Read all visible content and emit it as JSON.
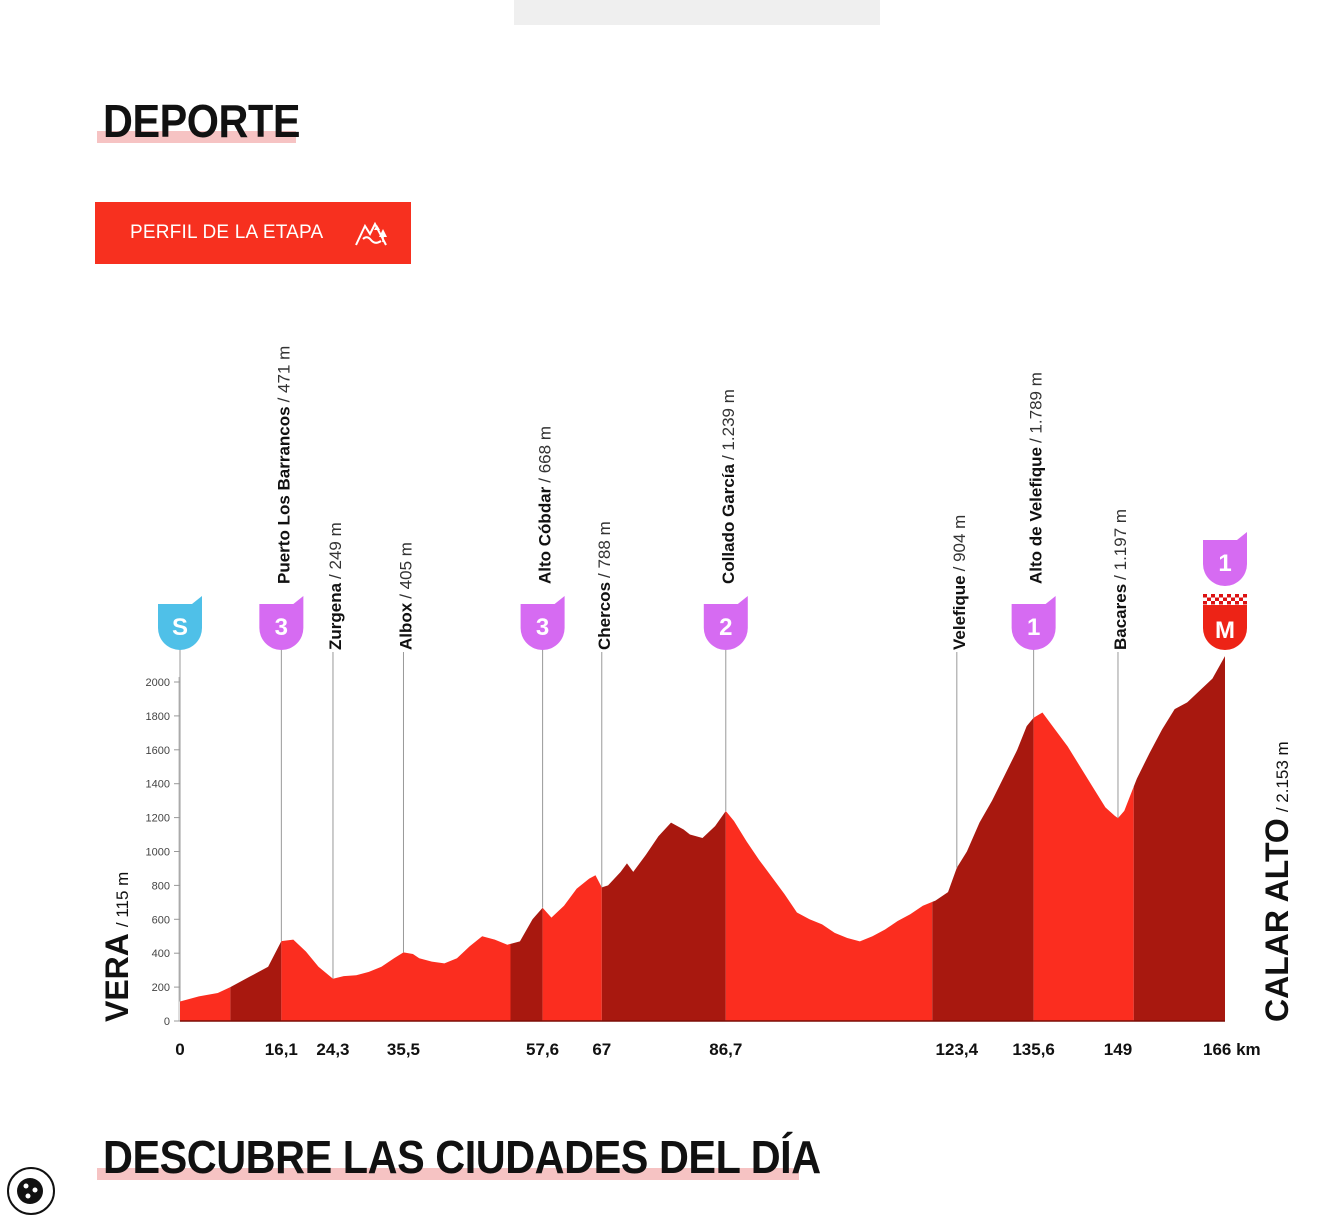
{
  "header": {
    "section_title": "DEPORTE"
  },
  "profile_button": {
    "label": "PERFIL DE LA ETAPA",
    "icon": "mountain-profile-icon"
  },
  "chart_data": {
    "type": "area",
    "x_unit": "km",
    "ylim": [
      0,
      2000
    ],
    "y_ticks": [
      "0",
      "200",
      "400",
      "600",
      "800",
      "1000",
      "1200",
      "1400",
      "1600",
      "1800",
      "2000"
    ],
    "x_ticks": [
      {
        "km": 0,
        "label": "0"
      },
      {
        "km": 16.1,
        "label": "16,1"
      },
      {
        "km": 24.3,
        "label": "24,3"
      },
      {
        "km": 35.5,
        "label": "35,5"
      },
      {
        "km": 57.6,
        "label": "57,6"
      },
      {
        "km": 67,
        "label": "67"
      },
      {
        "km": 86.7,
        "label": "86,7"
      },
      {
        "km": 123.4,
        "label": "123,4"
      },
      {
        "km": 135.6,
        "label": "135,6"
      },
      {
        "km": 149,
        "label": "149"
      },
      {
        "km": 166,
        "label": "166 km"
      }
    ],
    "start": {
      "name": "VERA",
      "altitude": "/ 115 m",
      "badge": "S"
    },
    "finish": {
      "name": "CALAR ALTO",
      "altitude": "/ 2.153 m",
      "badge": "M",
      "category": "1"
    },
    "waypoints": [
      {
        "km": 16.1,
        "name": "Puerto Los Barrancos",
        "altitude": "/ 471 m",
        "category": "3"
      },
      {
        "km": 24.3,
        "name": "Zurgena",
        "altitude": "/ 249 m"
      },
      {
        "km": 35.5,
        "name": "Albox",
        "altitude": "/ 405 m"
      },
      {
        "km": 57.6,
        "name": "Alto Cóbdar",
        "altitude": "/ 668 m",
        "category": "3"
      },
      {
        "km": 67,
        "name": "Chercos",
        "altitude": "/ 788 m"
      },
      {
        "km": 86.7,
        "name": "Collado García",
        "altitude": "/ 1.239 m",
        "category": "2"
      },
      {
        "km": 123.4,
        "name": "Velefique",
        "altitude": "/ 904 m"
      },
      {
        "km": 135.6,
        "name": "Alto de Velefique",
        "altitude": "/ 1.789 m",
        "category": "1"
      },
      {
        "km": 149,
        "name": "Bacares",
        "altitude": "/ 1.197 m"
      }
    ],
    "profile": [
      [
        0,
        115
      ],
      [
        3,
        145
      ],
      [
        6,
        165
      ],
      [
        8,
        200
      ],
      [
        11,
        260
      ],
      [
        14,
        320
      ],
      [
        16.1,
        471
      ],
      [
        18,
        480
      ],
      [
        20,
        410
      ],
      [
        22,
        320
      ],
      [
        24.3,
        249
      ],
      [
        26,
        265
      ],
      [
        28,
        270
      ],
      [
        30,
        290
      ],
      [
        32,
        320
      ],
      [
        34,
        370
      ],
      [
        35.5,
        405
      ],
      [
        37,
        395
      ],
      [
        38,
        370
      ],
      [
        40,
        350
      ],
      [
        42,
        340
      ],
      [
        44,
        370
      ],
      [
        46,
        440
      ],
      [
        48,
        500
      ],
      [
        50,
        480
      ],
      [
        52,
        450
      ],
      [
        54,
        470
      ],
      [
        56,
        600
      ],
      [
        57.6,
        668
      ],
      [
        59,
        610
      ],
      [
        61,
        680
      ],
      [
        63,
        780
      ],
      [
        65,
        840
      ],
      [
        66,
        860
      ],
      [
        67,
        788
      ],
      [
        68,
        800
      ],
      [
        70,
        880
      ],
      [
        71,
        930
      ],
      [
        72,
        880
      ],
      [
        74,
        980
      ],
      [
        76,
        1090
      ],
      [
        78,
        1170
      ],
      [
        80,
        1130
      ],
      [
        81,
        1100
      ],
      [
        83,
        1080
      ],
      [
        85,
        1150
      ],
      [
        86.7,
        1239
      ],
      [
        88,
        1180
      ],
      [
        90,
        1060
      ],
      [
        92,
        950
      ],
      [
        94,
        850
      ],
      [
        96,
        750
      ],
      [
        98,
        640
      ],
      [
        100,
        600
      ],
      [
        102,
        570
      ],
      [
        104,
        520
      ],
      [
        106,
        490
      ],
      [
        108,
        470
      ],
      [
        110,
        500
      ],
      [
        112,
        540
      ],
      [
        114,
        590
      ],
      [
        116,
        630
      ],
      [
        118,
        680
      ],
      [
        120,
        710
      ],
      [
        122,
        760
      ],
      [
        123.4,
        904
      ],
      [
        125,
        1000
      ],
      [
        127,
        1170
      ],
      [
        129,
        1300
      ],
      [
        131,
        1450
      ],
      [
        133,
        1600
      ],
      [
        134.5,
        1740
      ],
      [
        135.6,
        1789
      ],
      [
        137,
        1820
      ],
      [
        139,
        1720
      ],
      [
        141,
        1620
      ],
      [
        143,
        1500
      ],
      [
        145,
        1380
      ],
      [
        147,
        1260
      ],
      [
        148.5,
        1210
      ],
      [
        149,
        1197
      ],
      [
        150,
        1240
      ],
      [
        152,
        1430
      ],
      [
        154,
        1580
      ],
      [
        156,
        1720
      ],
      [
        158,
        1840
      ],
      [
        160,
        1880
      ],
      [
        162,
        1950
      ],
      [
        164,
        2020
      ],
      [
        166,
        2153
      ]
    ],
    "sections": [
      [
        0,
        8
      ],
      [
        8,
        16.1
      ],
      [
        16.1,
        52.5
      ],
      [
        52.5,
        57.6
      ],
      [
        57.6,
        67
      ],
      [
        67,
        86.7
      ],
      [
        86.7,
        119.5
      ],
      [
        119.5,
        135.6
      ],
      [
        135.6,
        151.5
      ],
      [
        151.5,
        166
      ]
    ],
    "colors": {
      "light": "#fb2d1f",
      "dark": "#a8180f",
      "cat_badge": "#d66bf2",
      "start_badge": "#4fc0e8",
      "finish_badge": "#ed2316"
    }
  },
  "next_section": {
    "title": "DESCUBRE LAS CIUDADES DEL DÍA"
  },
  "cookie_button": {
    "icon": "cookie-icon"
  }
}
